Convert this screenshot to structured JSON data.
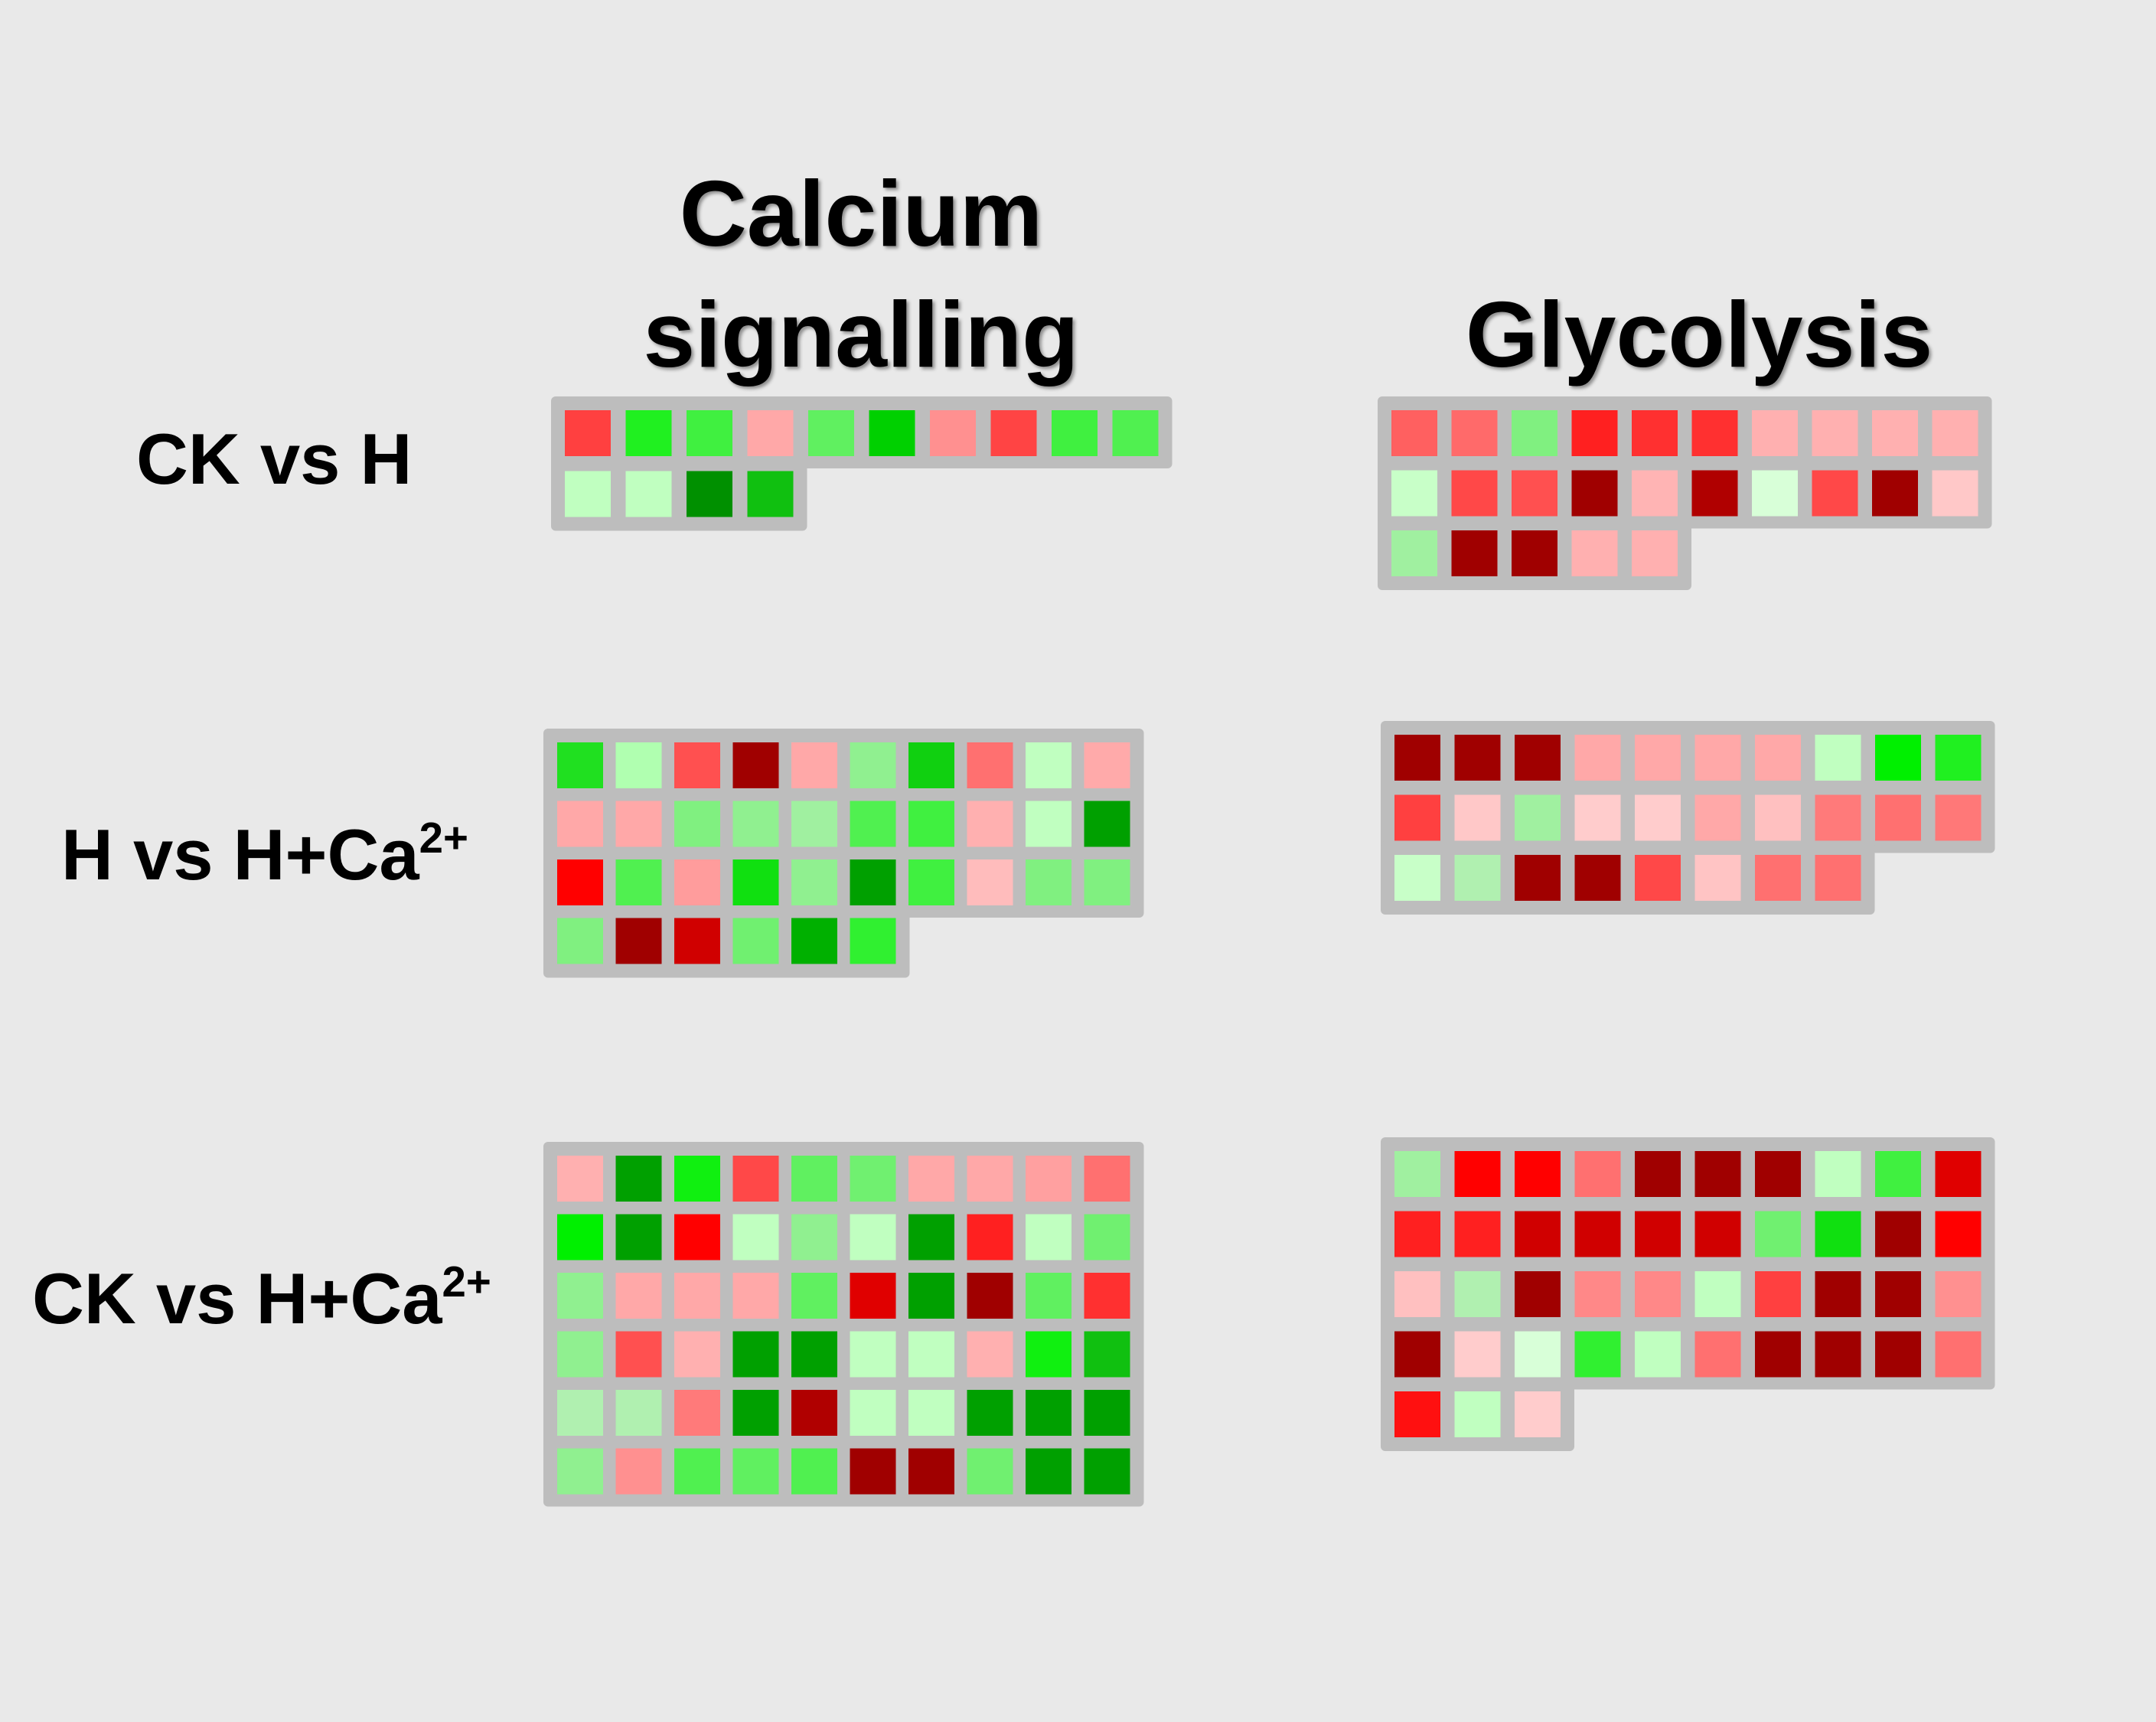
{
  "chart_data": {
    "type": "heatmap",
    "columns": [
      {
        "title_lines": [
          "Calcium",
          "signalling"
        ]
      },
      {
        "title_lines": [
          "Glycolysis"
        ]
      }
    ],
    "rows": [
      {
        "label": "CK vs H",
        "sup": ""
      },
      {
        "label": "H vs H+Ca",
        "sup": "2+"
      },
      {
        "label": "CK vs H+Ca",
        "sup": "2+"
      }
    ],
    "legend": "none",
    "panels": [
      {
        "row": 0,
        "column": 0,
        "cells": [
          "#ff4040",
          "#20f020",
          "#40f040",
          "#ffa8a8",
          "#60f060",
          "#00d000",
          "#ff9090",
          "#ff4444",
          "#40f040",
          "#50f050",
          "#c0ffc0",
          "#c0ffc0",
          "#009000",
          "#10c010"
        ]
      },
      {
        "row": 0,
        "column": 1,
        "cells": [
          "#ff6060",
          "#ff6a6a",
          "#80f080",
          "#ff2020",
          "#ff3030",
          "#ff3030",
          "#ffb0b0",
          "#ffb0b0",
          "#ffb0b0",
          "#ffb0b0",
          "#c8ffc8",
          "#ff4848",
          "#ff5050",
          "#a00000",
          "#ffb4b4",
          "#b00000",
          "#d8ffd8",
          "#ff4848",
          "#a00000",
          "#ffc8c8",
          "#a0f0a0",
          "#a00000",
          "#a00000",
          "#ffb0b0",
          "#ffb0b0"
        ]
      },
      {
        "row": 1,
        "column": 0,
        "cells": [
          "#20e020",
          "#b0ffb0",
          "#ff5050",
          "#a00000",
          "#ffa8a8",
          "#90f090",
          "#10d010",
          "#ff7070",
          "#c0ffc0",
          "#ffaaaa",
          "#ffa8a8",
          "#ffa8a8",
          "#80f080",
          "#90f090",
          "#a0f0a0",
          "#50f050",
          "#40f040",
          "#ffb0b0",
          "#c0ffc0",
          "#00a000",
          "#ff0000",
          "#50f050",
          "#ff9c9c",
          "#10e010",
          "#90f090",
          "#00a000",
          "#40f040",
          "#ffbcbc",
          "#80f080",
          "#80f080",
          "#80f080",
          "#a00000",
          "#d00000",
          "#70f070",
          "#00b000",
          "#30f030"
        ]
      },
      {
        "row": 1,
        "column": 1,
        "cells": [
          "#a00000",
          "#a00000",
          "#a00000",
          "#ffa8a8",
          "#ffa8a8",
          "#ffa8a8",
          "#ffa8a8",
          "#c0ffc0",
          "#00f000",
          "#20f020",
          "#ff4040",
          "#ffc8c8",
          "#a0f0a0",
          "#ffcccc",
          "#ffcccc",
          "#ffa8a8",
          "#ffc0c0",
          "#ff7a7a",
          "#ff7070",
          "#ff7878",
          "#c8ffc8",
          "#b0f0b0",
          "#a00000",
          "#a00000",
          "#ff4848",
          "#ffc4c4",
          "#ff7070",
          "#ff7070"
        ]
      },
      {
        "row": 2,
        "column": 0,
        "cells": [
          "#ffb0b0",
          "#00a000",
          "#10f010",
          "#ff4848",
          "#60f060",
          "#70f070",
          "#ffa8a8",
          "#ffa8a8",
          "#ffa0a0",
          "#ff7070",
          "#00f000",
          "#00a000",
          "#ff0000",
          "#c0ffc0",
          "#90f090",
          "#c0ffc0",
          "#00a000",
          "#ff2020",
          "#c0ffc0",
          "#70f070",
          "#90f090",
          "#ffa8a8",
          "#ffa8a8",
          "#ffa8a8",
          "#60f060",
          "#e00000",
          "#00a000",
          "#a00000",
          "#60f060",
          "#ff3030",
          "#90f090",
          "#ff5050",
          "#ffb0b0",
          "#00a000",
          "#00a000",
          "#c0ffc0",
          "#c0ffc0",
          "#ffb0b0",
          "#10f010",
          "#10c010",
          "#b0f0b0",
          "#b0f0b0",
          "#ff7a7a",
          "#00a000",
          "#b00000",
          "#c0ffc0",
          "#c0ffc0",
          "#00a000",
          "#00a000",
          "#00a000",
          "#90f090",
          "#ff9090",
          "#50f050",
          "#60f060",
          "#50f050",
          "#a00000",
          "#a00000",
          "#70f070",
          "#00a000",
          "#00a000"
        ]
      },
      {
        "row": 2,
        "column": 1,
        "cells": [
          "#a0f0a0",
          "#ff0000",
          "#ff0000",
          "#ff7070",
          "#a00000",
          "#a00000",
          "#a00000",
          "#c0ffc0",
          "#40f040",
          "#e00000",
          "#ff2020",
          "#ff2020",
          "#d00000",
          "#d00000",
          "#d00000",
          "#d00000",
          "#70f070",
          "#10e010",
          "#a00000",
          "#ff0000",
          "#ffc0c0",
          "#b0f0b0",
          "#a00000",
          "#ff8888",
          "#ff8888",
          "#c0ffc0",
          "#ff4040",
          "#a00000",
          "#a00000",
          "#ff9090",
          "#a00000",
          "#ffcccc",
          "#d8ffd8",
          "#30f030",
          "#c0ffc0",
          "#ff7070",
          "#a00000",
          "#a00000",
          "#a00000",
          "#ff7070",
          "#ff1010",
          "#c0ffc0",
          "#ffcccc"
        ]
      }
    ]
  }
}
